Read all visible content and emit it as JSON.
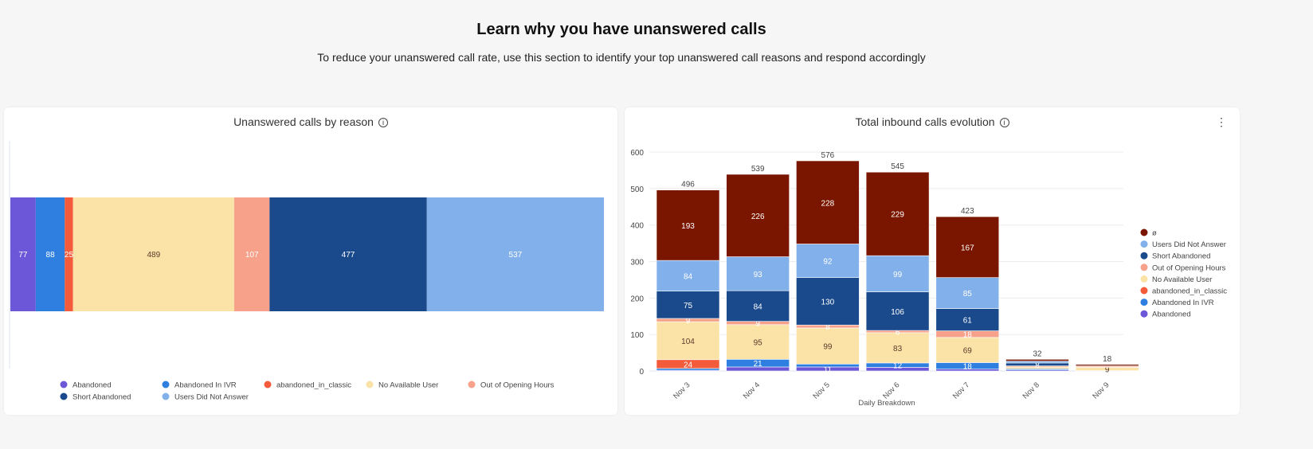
{
  "header": {
    "title": "Learn why you have unanswered calls",
    "subtitle": "To reduce your unanswered call rate, use this section to identify your top unanswered call reasons and respond accordingly"
  },
  "colors": {
    "Abandoned": "#6b57d8",
    "Abandoned In IVR": "#2e7fe0",
    "abandoned_in_classic": "#f35b3a",
    "No Available User": "#fbe3a8",
    "Out of Opening Hours": "#f7a08a",
    "Short Abandoned": "#1a4a8c",
    "Users Did Not Answer": "#82b0ea",
    "ø": "#7a1600"
  },
  "chart_data": [
    {
      "type": "bar",
      "orientation": "horizontal",
      "stacked": true,
      "title": "Unanswered calls by reason",
      "series": [
        {
          "name": "Abandoned",
          "values": [
            77
          ]
        },
        {
          "name": "Abandoned In IVR",
          "values": [
            88
          ]
        },
        {
          "name": "abandoned_in_classic",
          "values": [
            25
          ]
        },
        {
          "name": "No Available User",
          "values": [
            489
          ]
        },
        {
          "name": "Out of Opening Hours",
          "values": [
            107
          ]
        },
        {
          "name": "Short Abandoned",
          "values": [
            477
          ]
        },
        {
          "name": "Users Did Not Answer",
          "values": [
            537
          ]
        }
      ],
      "legend": "bottom"
    },
    {
      "type": "bar",
      "stacked": true,
      "title": "Total inbound calls evolution",
      "xlabel": "Daily Breakdown",
      "ylabel": "",
      "ylim": [
        0,
        600
      ],
      "yticks": [
        0,
        100,
        200,
        300,
        400,
        500,
        600
      ],
      "categories": [
        "Nov 3",
        "Nov 4",
        "Nov 5",
        "Nov 6",
        "Nov 7",
        "Nov 8",
        "Nov 9"
      ],
      "totals": [
        496,
        539,
        576,
        545,
        423,
        32,
        18
      ],
      "series": [
        {
          "name": "Abandoned",
          "values": [
            2,
            11,
            11,
            10,
            5,
            3,
            1
          ],
          "labels": [
            null,
            null,
            11,
            null,
            null,
            null,
            null
          ]
        },
        {
          "name": "Abandoned In IVR",
          "values": [
            5,
            21,
            8,
            12,
            18,
            3,
            0
          ],
          "labels": [
            null,
            21,
            null,
            12,
            18,
            null,
            null
          ]
        },
        {
          "name": "abandoned_in_classic",
          "values": [
            24,
            0,
            0,
            0,
            0,
            0,
            0
          ],
          "labels": [
            24,
            null,
            null,
            null,
            null,
            null,
            null
          ]
        },
        {
          "name": "No Available User",
          "values": [
            104,
            95,
            99,
            83,
            69,
            5,
            9
          ],
          "labels": [
            104,
            95,
            99,
            83,
            69,
            null,
            9
          ]
        },
        {
          "name": "Out of Opening Hours",
          "values": [
            9,
            9,
            8,
            6,
            18,
            3,
            3
          ],
          "labels": [
            9,
            9,
            8,
            6,
            18,
            null,
            null
          ]
        },
        {
          "name": "Short Abandoned",
          "values": [
            75,
            84,
            130,
            106,
            61,
            8,
            1
          ],
          "labels": [
            75,
            84,
            130,
            106,
            61,
            8,
            null
          ]
        },
        {
          "name": "Users Did Not Answer",
          "values": [
            84,
            93,
            92,
            99,
            85,
            5,
            0
          ],
          "labels": [
            84,
            93,
            92,
            99,
            85,
            null,
            null
          ]
        },
        {
          "name": "ø",
          "values": [
            193,
            226,
            228,
            229,
            167,
            5,
            4
          ],
          "labels": [
            193,
            226,
            228,
            229,
            167,
            null,
            null
          ]
        }
      ],
      "legend": "right"
    }
  ]
}
